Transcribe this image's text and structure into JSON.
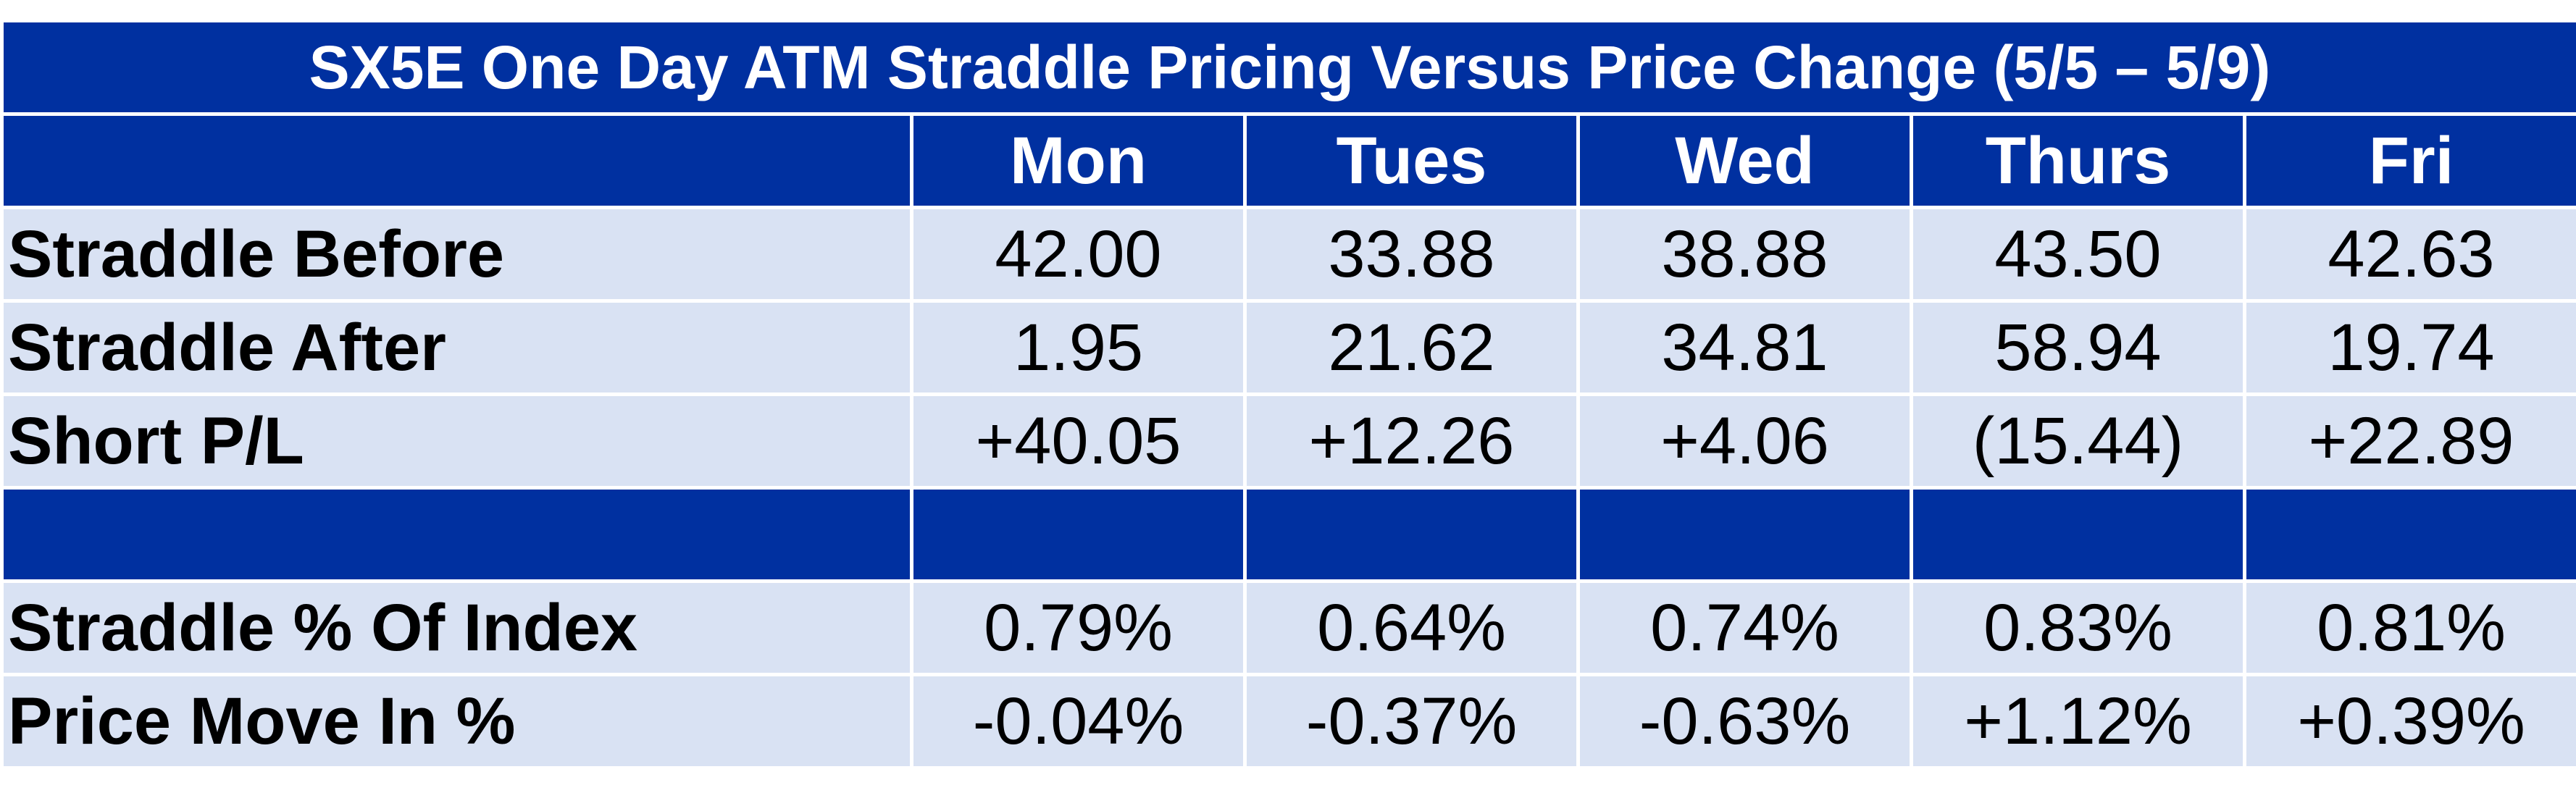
{
  "chart_data": {
    "type": "table",
    "title": "SX5E One Day ATM Straddle Pricing Versus Price Change (5/5 – 5/9)",
    "columns": [
      "Mon",
      "Tues",
      "Wed",
      "Thurs",
      "Fri"
    ],
    "rows_top": [
      {
        "label": "Straddle Before",
        "cells": [
          {
            "text": "42.00",
            "tone": "plain"
          },
          {
            "text": "33.88",
            "tone": "plain"
          },
          {
            "text": "38.88",
            "tone": "plain"
          },
          {
            "text": "43.50",
            "tone": "plain"
          },
          {
            "text": "42.63",
            "tone": "plain"
          }
        ]
      },
      {
        "label": "Straddle After",
        "cells": [
          {
            "text": "1.95",
            "tone": "plain"
          },
          {
            "text": "21.62",
            "tone": "plain"
          },
          {
            "text": "34.81",
            "tone": "plain"
          },
          {
            "text": "58.94",
            "tone": "plain"
          },
          {
            "text": "19.74",
            "tone": "plain"
          }
        ]
      },
      {
        "label": "Short P/L",
        "cells": [
          {
            "text": "+40.05",
            "tone": "pos"
          },
          {
            "text": "+12.26",
            "tone": "pos"
          },
          {
            "text": "+4.06",
            "tone": "pos"
          },
          {
            "text": "(15.44)",
            "tone": "neg"
          },
          {
            "text": "+22.89",
            "tone": "pos"
          }
        ]
      }
    ],
    "rows_bottom": [
      {
        "label": "Straddle % Of Index",
        "cells": [
          {
            "text": "0.79%",
            "tone": "plain"
          },
          {
            "text": "0.64%",
            "tone": "plain"
          },
          {
            "text": "0.74%",
            "tone": "plain"
          },
          {
            "text": "0.83%",
            "tone": "plain"
          },
          {
            "text": "0.81%",
            "tone": "plain"
          }
        ]
      },
      {
        "label": "Price Move In %",
        "cells": [
          {
            "text": "-0.04%",
            "tone": "neg"
          },
          {
            "text": "-0.37%",
            "tone": "neg"
          },
          {
            "text": "-0.63%",
            "tone": "neg"
          },
          {
            "text": "+1.12%",
            "tone": "pos"
          },
          {
            "text": "+0.39%",
            "tone": "pos"
          }
        ]
      }
    ],
    "colors": {
      "header_bg": "#0030A0",
      "row_bg": "#D9E2F3",
      "positive": "#0E8A16",
      "negative": "#C00000"
    }
  }
}
